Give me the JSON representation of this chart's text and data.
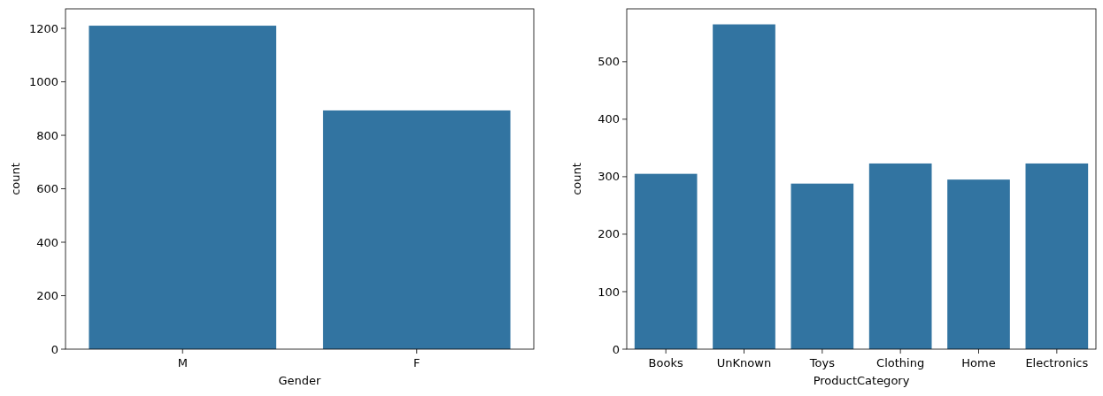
{
  "chart_data": [
    {
      "type": "bar",
      "xlabel": "Gender",
      "ylabel": "count",
      "categories": [
        "M",
        "F"
      ],
      "values": [
        1210,
        893
      ],
      "color": "#3274a1",
      "ylim": [
        0,
        1273
      ],
      "yticks": [
        0,
        200,
        400,
        600,
        800,
        1000,
        1200
      ]
    },
    {
      "type": "bar",
      "xlabel": "ProductCategory",
      "ylabel": "count",
      "categories": [
        "Books",
        "UnKnown",
        "Toys",
        "Clothing",
        "Home",
        "Electronics"
      ],
      "values": [
        305,
        565,
        288,
        323,
        295,
        323
      ],
      "color": "#3274a1",
      "ylim": [
        0,
        592
      ],
      "yticks": [
        0,
        100,
        200,
        300,
        400,
        500
      ]
    }
  ]
}
